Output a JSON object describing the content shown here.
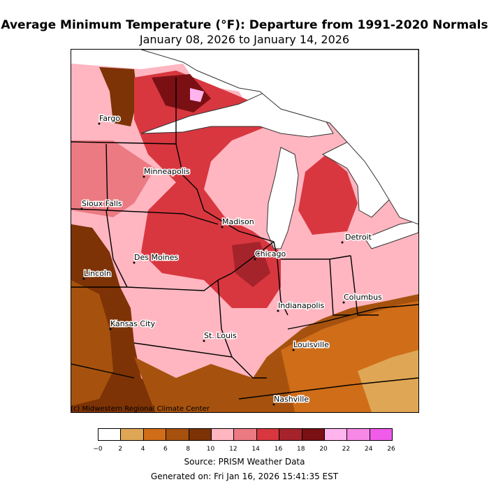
{
  "title": "Average Minimum Temperature (°F): Departure from 1991-2020 Normals",
  "subtitle": "January 08, 2026 to January 14, 2026",
  "credit": "(c) Midwestern Regional Climate Center",
  "source": "Source: PRISM Weather Data",
  "generated": "Generated on: Fri Jan 16, 2026 15:41:35 EST",
  "cities": [
    {
      "key": "fargo",
      "name": "Fargo"
    },
    {
      "key": "minneapolis",
      "name": "Minneapolis"
    },
    {
      "key": "sioux-falls",
      "name": "Sioux Falls"
    },
    {
      "key": "madison",
      "name": "Madison"
    },
    {
      "key": "detroit",
      "name": "Detroit"
    },
    {
      "key": "des-moines",
      "name": "Des Moines"
    },
    {
      "key": "chicago",
      "name": "Chicago"
    },
    {
      "key": "lincoln",
      "name": "Lincoln"
    },
    {
      "key": "indianapolis",
      "name": "Indianapolis"
    },
    {
      "key": "columbus",
      "name": "Columbus"
    },
    {
      "key": "kansas-city",
      "name": "Kansas City"
    },
    {
      "key": "st-louis",
      "name": "St. Louis"
    },
    {
      "key": "louisville",
      "name": "Louisville"
    },
    {
      "key": "nashville",
      "name": "Nashville"
    }
  ],
  "legend": {
    "ticks": [
      "−0",
      "2",
      "4",
      "6",
      "8",
      "10",
      "12",
      "14",
      "16",
      "18",
      "20",
      "22",
      "24",
      "26"
    ],
    "colors": [
      "#ffffff",
      "#dfa655",
      "#cf6d18",
      "#a6520e",
      "#7d3305",
      "#ffb6c1",
      "#ec7a82",
      "#d8373f",
      "#a5232b",
      "#7a1014",
      "#ffb4ee",
      "#f788e6",
      "#f05ce9"
    ]
  }
}
